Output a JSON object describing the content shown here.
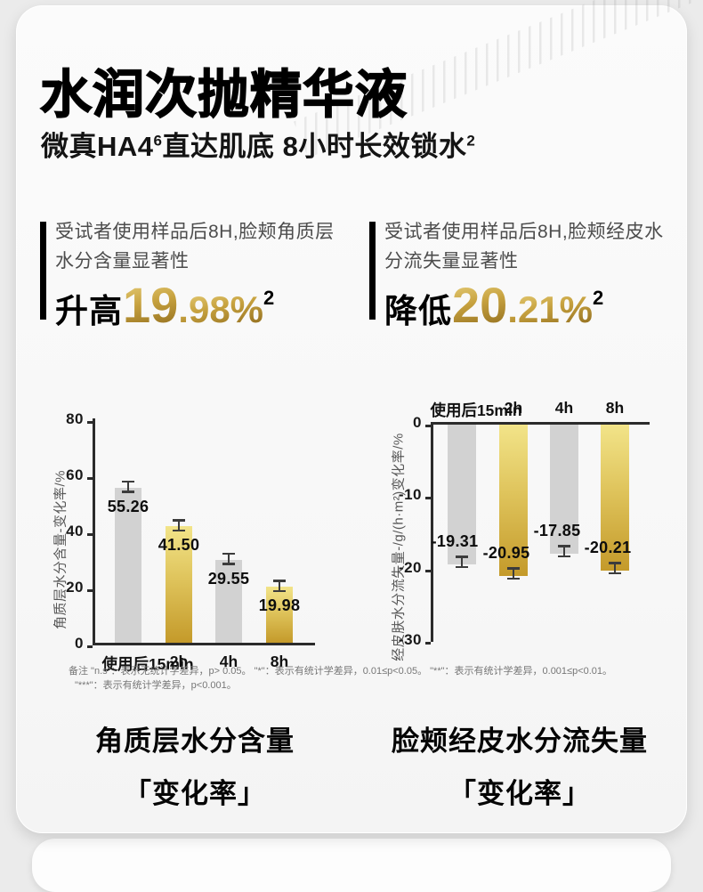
{
  "header": {
    "title": "水润次抛精华液",
    "subtitle_p1": "微真HA4",
    "subtitle_sup1": "6",
    "subtitle_p2": "直达肌底  8小时长效锁水",
    "subtitle_sup2": "2"
  },
  "stats": [
    {
      "desc_line1": "受试者使用样品后8H,脸颊角质层",
      "desc_line2": "水分含量显著性",
      "verb": "升高",
      "value_int": "19",
      "value_frac": ".98%",
      "sup": "2"
    },
    {
      "desc_line1": "受试者使用样品后8H,脸颊经皮水",
      "desc_line2": "分流失量显著性",
      "verb": "降低",
      "value_int": "20",
      "value_frac": ".21%",
      "sup": "2"
    }
  ],
  "chart_data": [
    {
      "type": "bar",
      "direction": "up",
      "title": "",
      "ylabel": "角质层水分含量-变化率/%",
      "xlabel": "",
      "categories": [
        "使用后15min",
        "2h",
        "4h",
        "8h"
      ],
      "values": [
        55.26,
        41.5,
        29.55,
        19.98
      ],
      "labels": [
        "55.26",
        "41.50",
        "29.55",
        "19.98"
      ],
      "bar_colors": [
        "gray",
        "gold",
        "gray",
        "gold"
      ],
      "yticks": [
        0,
        20,
        40,
        60,
        80
      ],
      "ylim": [
        0,
        80
      ],
      "grid": false,
      "legend": "none",
      "error_bars": true
    },
    {
      "type": "bar",
      "direction": "down",
      "title": "",
      "ylabel": "经皮肤水分流失量-/g/(h·m²)变化率/%",
      "xlabel": "",
      "categories": [
        "使用后15min",
        "2h",
        "4h",
        "8h"
      ],
      "values": [
        -19.31,
        -20.95,
        -17.85,
        -20.21
      ],
      "labels": [
        "-19.31",
        "-20.95",
        "-17.85",
        "-20.21"
      ],
      "bar_colors": [
        "gray",
        "gold",
        "gray",
        "gold"
      ],
      "yticks": [
        0,
        -10,
        -20,
        -30
      ],
      "ylim": [
        -30,
        0
      ],
      "grid": false,
      "legend": "none",
      "error_bars": true
    }
  ],
  "footnote": {
    "line1": "备注 \"n.s\"：表示无统计学差异，p> 0.05。 \"*\"：表示有统计学差异，0.01≤p<0.05。 \"**\"：表示有统计学差异，0.001≤p<0.01。",
    "line2": "\"***\"：表示有统计学差异，p<0.001。"
  },
  "captions": [
    {
      "line1": "角质层水分含量",
      "line2": "「变化率」"
    },
    {
      "line1": "脸颊经皮水分流失量",
      "line2": "「变化率」"
    }
  ],
  "colors": {
    "gold_light": "#f2e489",
    "gold_mid": "#dfc45c",
    "gold_dark": "#c49a2a",
    "gold_text_light": "#e6cd78",
    "gold_text_dark": "#8f6b1d",
    "bar_gray": "#d2d2d2",
    "axis": "#2b2b2b",
    "error_bar": "#3c3c3c"
  }
}
